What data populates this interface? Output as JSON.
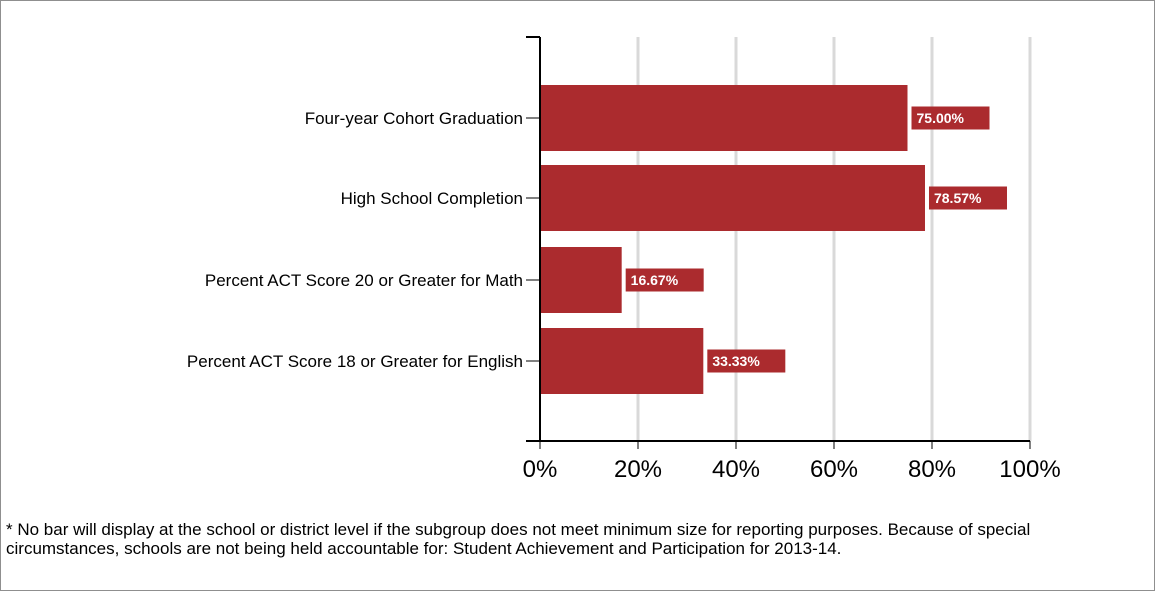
{
  "chart_data": {
    "type": "bar",
    "orientation": "horizontal",
    "categories": [
      "Four-year Cohort Graduation",
      "High School Completion",
      "Percent ACT Score 20 or Greater for Math",
      "Percent ACT Score 18 or Greater for English"
    ],
    "values": [
      75.0,
      78.57,
      16.67,
      33.33
    ],
    "data_labels": [
      "75.00%",
      "78.57%",
      "16.67%",
      "33.33%"
    ],
    "xlim": [
      0,
      100
    ],
    "xticks": [
      0,
      20,
      40,
      60,
      80,
      100
    ],
    "xtick_labels": [
      "0%",
      "20%",
      "40%",
      "60%",
      "80%",
      "100%"
    ],
    "grid": true,
    "bar_color": "#ab2b2e",
    "grid_color": "#d9d9d9"
  },
  "footnote": "* No bar will display at the school or district level if the subgroup does not meet minimum size for reporting purposes. Because of special circumstances, schools are not being held accountable for: Student Achievement and Participation for 2013-14."
}
